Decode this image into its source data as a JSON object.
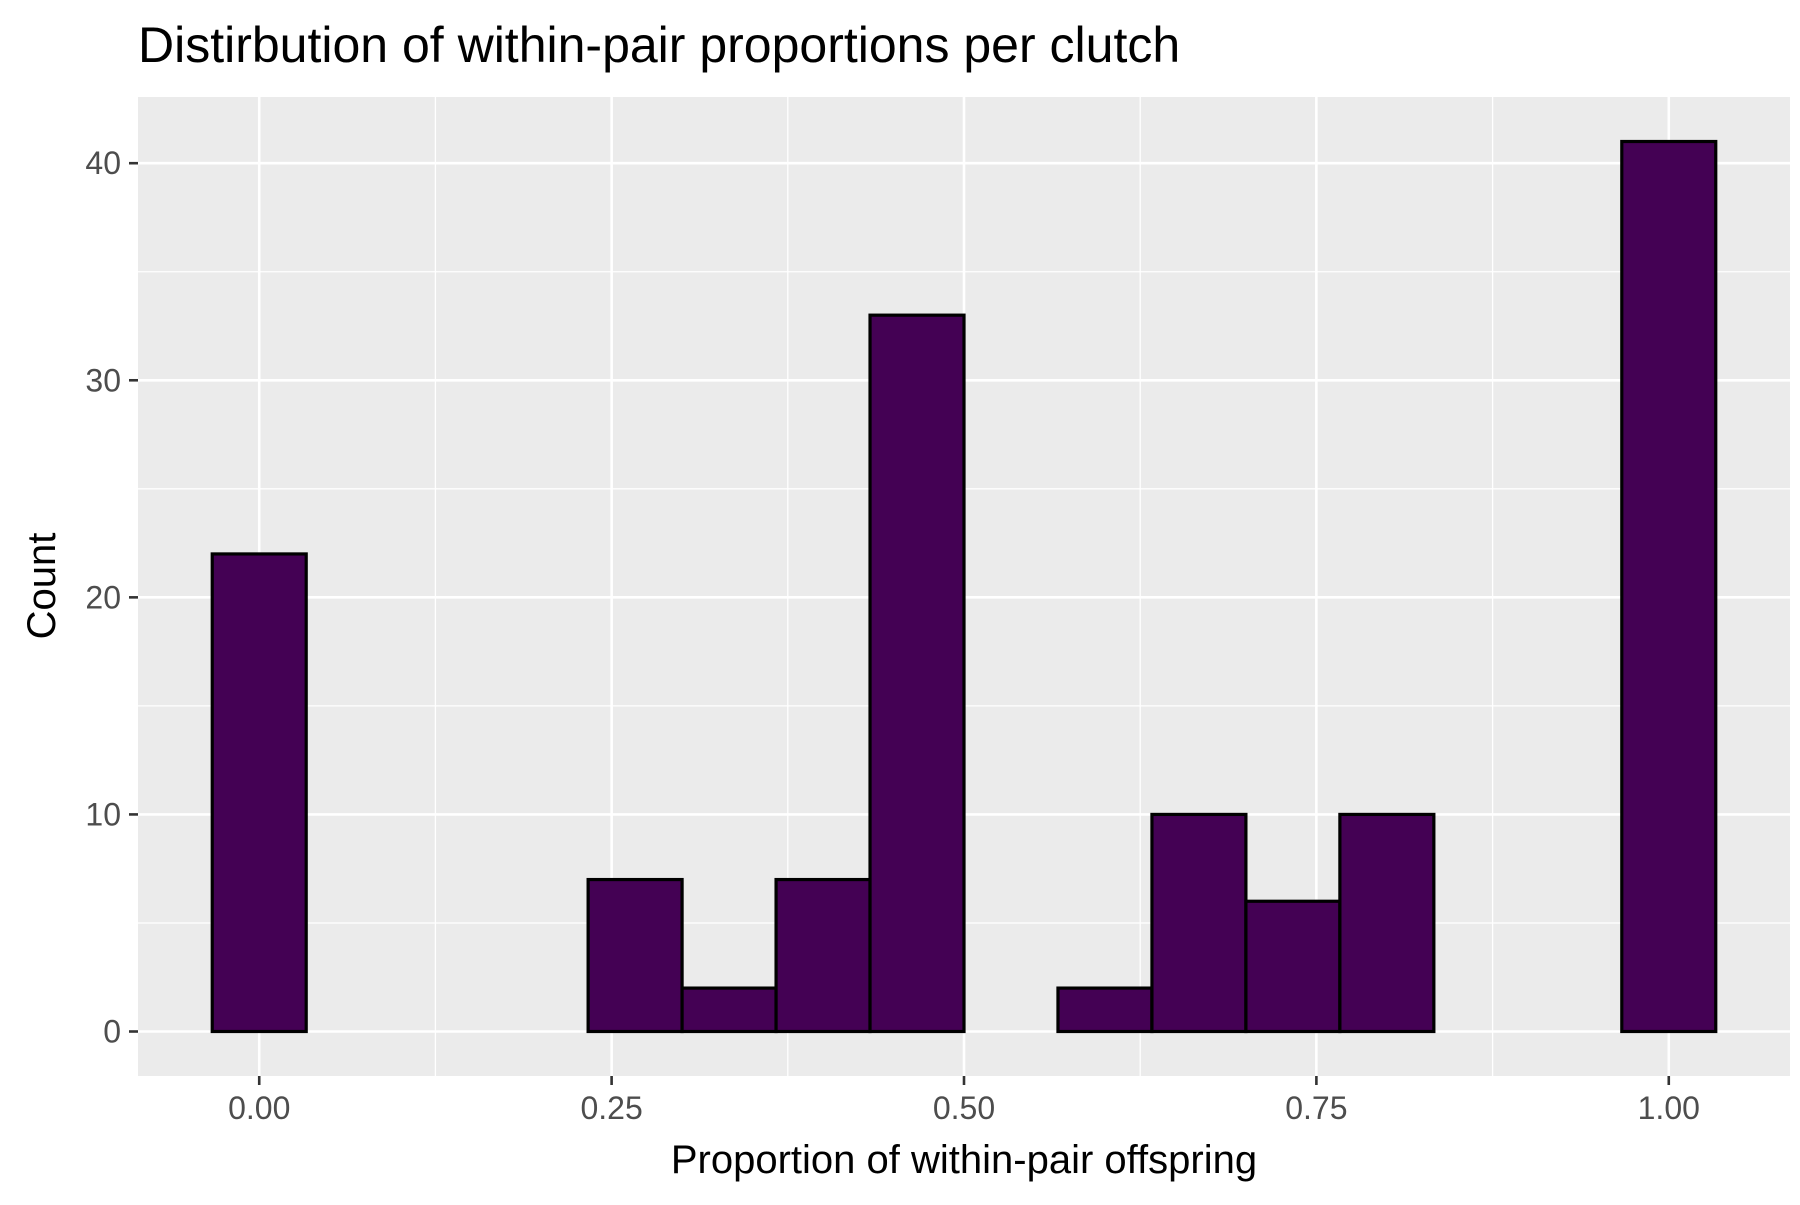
{
  "chart_data": {
    "type": "bar",
    "title": "Distirbution of within-pair proportions per clutch",
    "xlabel": "Proportion of within-pair offspring",
    "ylabel": "Count",
    "xlim": [
      -0.086,
      1.086
    ],
    "ylim": [
      -2.05,
      43.05
    ],
    "x_ticks": [
      0,
      0.25,
      0.5,
      0.75,
      1
    ],
    "x_tick_labels": [
      "0.00",
      "0.25",
      "0.50",
      "0.75",
      "1.00"
    ],
    "y_ticks": [
      0,
      10,
      20,
      30,
      40
    ],
    "y_tick_labels": [
      "0",
      "10",
      "20",
      "30",
      "40"
    ],
    "grid": true,
    "legend": "none",
    "bin_width": 0.066667,
    "bins": [
      {
        "xmin": -0.033333,
        "xmax": 0.033333,
        "count": 22
      },
      {
        "xmin": 0.033333,
        "xmax": 0.1,
        "count": 0
      },
      {
        "xmin": 0.1,
        "xmax": 0.166667,
        "count": 0
      },
      {
        "xmin": 0.166667,
        "xmax": 0.233333,
        "count": 0
      },
      {
        "xmin": 0.233333,
        "xmax": 0.3,
        "count": 7
      },
      {
        "xmin": 0.3,
        "xmax": 0.366667,
        "count": 2
      },
      {
        "xmin": 0.366667,
        "xmax": 0.433333,
        "count": 7
      },
      {
        "xmin": 0.433333,
        "xmax": 0.5,
        "count": 33
      },
      {
        "xmin": 0.5,
        "xmax": 0.566667,
        "count": 0
      },
      {
        "xmin": 0.566667,
        "xmax": 0.633333,
        "count": 2
      },
      {
        "xmin": 0.633333,
        "xmax": 0.7,
        "count": 10
      },
      {
        "xmin": 0.7,
        "xmax": 0.766667,
        "count": 6
      },
      {
        "xmin": 0.766667,
        "xmax": 0.833333,
        "count": 10
      },
      {
        "xmin": 0.833333,
        "xmax": 0.9,
        "count": 0
      },
      {
        "xmin": 0.9,
        "xmax": 0.966667,
        "count": 0
      },
      {
        "xmin": 0.966667,
        "xmax": 1.033333,
        "count": 41
      }
    ],
    "colors": {
      "bar_fill": "#440154",
      "bar_stroke": "#000000",
      "panel_background": "#EBEBEB",
      "grid_major": "#FFFFFF",
      "grid_minor": "#FFFFFF",
      "tick_text": "#4D4D4D",
      "axis_title": "#000000"
    }
  }
}
